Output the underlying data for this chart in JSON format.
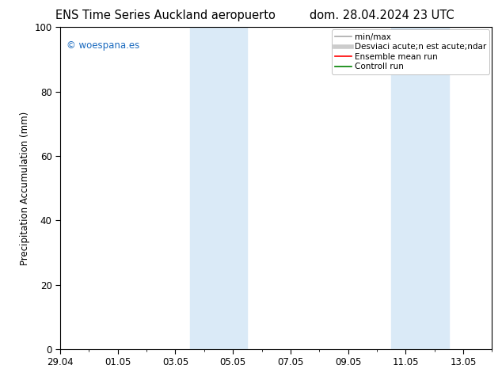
{
  "title_left": "ENS Time Series Auckland aeropuerto",
  "title_right": "dom. 28.04.2024 23 UTC",
  "ylabel": "Precipitation Accumulation (mm)",
  "ylim": [
    0,
    100
  ],
  "yticks": [
    0,
    20,
    40,
    60,
    80,
    100
  ],
  "xtick_labels": [
    "29.04",
    "01.05",
    "03.05",
    "05.05",
    "07.05",
    "09.05",
    "11.05",
    "13.05"
  ],
  "xtick_positions": [
    0,
    2,
    4,
    6,
    8,
    10,
    12,
    14
  ],
  "xlim": [
    0,
    15
  ],
  "shaded_bands": [
    {
      "x_start": 4.5,
      "x_end": 6.5
    },
    {
      "x_start": 11.5,
      "x_end": 13.5
    }
  ],
  "shaded_color": "#daeaf7",
  "watermark_text": "© woespana.es",
  "watermark_color": "#1a6abf",
  "legend_items": [
    {
      "label": "min/max",
      "color": "#aaaaaa",
      "lw": 1.2
    },
    {
      "label": "Desviaci acute;n est acute;ndar",
      "color": "#cccccc",
      "lw": 4.0
    },
    {
      "label": "Ensemble mean run",
      "color": "red",
      "lw": 1.2
    },
    {
      "label": "Controll run",
      "color": "green",
      "lw": 1.2
    }
  ],
  "background_color": "#ffffff"
}
